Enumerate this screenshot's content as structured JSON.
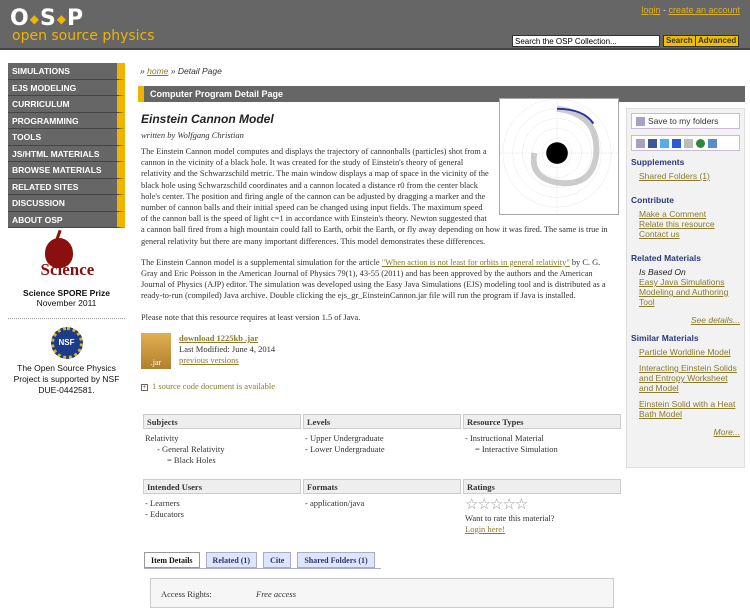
{
  "header": {
    "logo": "O•S•P",
    "logo_sub": "open source physics",
    "login": "login",
    "sep": " - ",
    "create_account": "create an account",
    "search_placeholder": "Search the OSP Collection...",
    "search_btn": "Search",
    "advanced_btn": "Advanced"
  },
  "nav": [
    "SIMULATIONS",
    "EJS MODELING",
    "CURRICULUM",
    "PROGRAMMING",
    "TOOLS",
    "JS/HTML MATERIALS",
    "BROWSE MATERIALS",
    "RELATED SITES",
    "DISCUSSION",
    "ABOUT OSP"
  ],
  "award": {
    "logo_text": "Science",
    "title": "Science SPORE Prize",
    "date": "November 2011"
  },
  "nsf": {
    "logo_text": "NSF",
    "text": "The Open Source Physics Project is supported by NSF DUE-0442581."
  },
  "breadcrumb": {
    "home": "home",
    "current": "Detail Page",
    "sep": "»"
  },
  "title_bar": "Computer Program Detail Page",
  "resource": {
    "title": "Einstein Cannon Model",
    "byline": "written by Wolfgang Christian",
    "desc1": "The Einstein Cannon model computes and displays the trajectory of cannonballs (particles) shot from a cannon in the vicinity of a black hole.  It was created for the study of Einstein's theory of general relativity and the Schwarzschild metric.  The main window displays a map of space in the vicinity of the black hole using Schwarzschild coordinates and a cannon located a distance r0 from the center black hole's center.  The position and firing angle of the cannon can be adjusted by dragging a marker and the number of cannon balls and their initial speed can be changed using input fields.  The maximum speed of the cannon ball is the speed of light c=1 in accordance with Einstein's theory.  Newton suggested that a cannon ball fired from a high mountain could fall to Earth, orbit the Earth, or fly away depending on how it was fired.  The same is true in general relativity but there are many important differences.  This model demonstrates these differences.",
    "desc2_pre": "The Einstein Cannon model is a supplemental simulation for the article ",
    "desc2_link": "\"When action is not least for orbits in general relativity\"",
    "desc2_post": " by C. G. Gray and Eric Poisson in the American Journal of Physics 79(1), 43-55 (2011) and has been approved by the authors and the American Journal of Physics (AJP) editor.  The simulation was developed using the Easy Java Simulations (EJS) modeling tool and is distributed as a ready-to-run (compiled) Java archive.  Double clicking the ejs_gr_EinsteinCannon.jar file will run the program if Java is installed.",
    "note": "Please note that this resource requires at least version 1.5 of Java.",
    "download": "download 1225kb .jar",
    "jar_label": ".jar",
    "modified": "Last Modified: June 4, 2014",
    "previous": "previous versions",
    "source": "1 source code document is available"
  },
  "meta": [
    {
      "head": "Subjects",
      "lines": [
        "Relativity",
        "   - General Relativity",
        "      = Black Holes"
      ]
    },
    {
      "head": "Levels",
      "lines": [
        "- Upper Undergraduate",
        "- Lower Undergraduate"
      ]
    },
    {
      "head": "Resource Types",
      "lines": [
        "- Instructional Material",
        "   = Interactive Simulation"
      ]
    },
    {
      "head": "Intended Users",
      "lines": [
        "- Learners",
        "- Educators"
      ]
    },
    {
      "head": "Formats",
      "lines": [
        "- application/java"
      ]
    },
    {
      "head": "Ratings",
      "stars": "☆☆☆☆☆",
      "rating": 0,
      "want": "Want to rate this material?",
      "login": "Login here!"
    }
  ],
  "tabs": [
    "Item Details",
    "Related (1)",
    "Cite",
    "Shared Folders (1)"
  ],
  "details": {
    "label": "Access Rights:",
    "value": "Free access"
  },
  "right": {
    "save": "Save to my folders",
    "supplements": "Supplements",
    "shared": "Shared Folders (1)",
    "contribute": "Contribute",
    "contrib_links": [
      "Make a Comment",
      "Relate this resource",
      "Contact us"
    ],
    "related": "Related Materials",
    "based_on": "Is Based On",
    "based_link": "Easy Java Simulations Modeling and Authoring Tool",
    "see": "See details...",
    "similar": "Similar Materials",
    "similar_links": [
      "Particle Worldline Model",
      "Interacting Einstein Solids and Entropy Worksheet and Model",
      "Einstein Solid with a Heat Bath Model"
    ],
    "more": "More..."
  }
}
